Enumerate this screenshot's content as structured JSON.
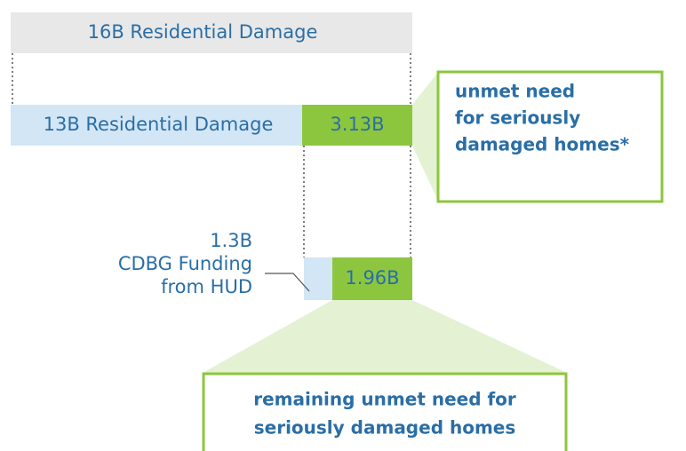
{
  "bars": {
    "total": "16B Residential Damage",
    "covered": "13B Residential Damage",
    "unmet": "3.13B",
    "cdbg_amount": "1.3B",
    "cdbg_label_line1": "CDBG Funding",
    "cdbg_label_line2": "from HUD",
    "remaining": "1.96B"
  },
  "callouts": {
    "unmet": [
      "unmet need",
      "for seriously",
      "damaged homes*"
    ],
    "remaining": [
      "remaining unmet need for",
      "seriously damaged homes"
    ]
  }
}
